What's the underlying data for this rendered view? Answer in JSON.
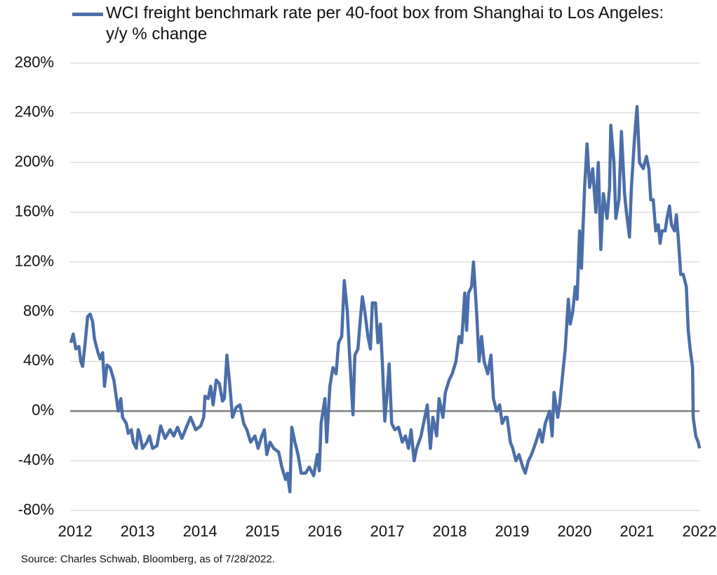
{
  "chart_data": {
    "type": "line",
    "note": "Source: Charles Schwab, Bloomberg, as of 7/28/2022.",
    "x": [
      2011.93,
      2011.97,
      2012.01,
      2012.06,
      2012.09,
      2012.12,
      2012.16,
      2012.2,
      2012.24,
      2012.28,
      2012.31,
      2012.36,
      2012.4,
      2012.44,
      2012.47,
      2012.51,
      2012.56,
      2012.62,
      2012.69,
      2012.73,
      2012.76,
      2012.82,
      2012.85,
      2012.9,
      2012.93,
      2012.98,
      2013.01,
      2013.04,
      2013.08,
      2013.15,
      2013.19,
      2013.24,
      2013.31,
      2013.37,
      2013.44,
      2013.52,
      2013.58,
      2013.64,
      2013.71,
      2013.79,
      2013.85,
      2013.93,
      2014.01,
      2014.06,
      2014.08,
      2014.13,
      2014.17,
      2014.21,
      2014.26,
      2014.31,
      2014.36,
      2014.39,
      2014.43,
      2014.47,
      2014.52,
      2014.58,
      2014.64,
      2014.7,
      2014.75,
      2014.81,
      2014.88,
      2014.93,
      2014.99,
      2015.03,
      2015.07,
      2015.12,
      2015.18,
      2015.26,
      2015.31,
      2015.37,
      2015.4,
      2015.44,
      2015.47,
      2015.52,
      2015.57,
      2015.62,
      2015.69,
      2015.75,
      2015.82,
      2015.88,
      2015.91,
      2015.94,
      2016.0,
      2016.03,
      2016.08,
      2016.13,
      2016.18,
      2016.22,
      2016.27,
      2016.31,
      2016.36,
      2016.39,
      2016.45,
      2016.48,
      2016.53,
      2016.57,
      2016.6,
      2016.64,
      2016.69,
      2016.73,
      2016.76,
      2016.81,
      2016.85,
      2016.89,
      2016.92,
      2016.96,
      2016.99,
      2017.03,
      2017.07,
      2017.12,
      2017.18,
      2017.24,
      2017.29,
      2017.34,
      2017.38,
      2017.43,
      2017.47,
      2017.54,
      2017.6,
      2017.64,
      2017.69,
      2017.73,
      2017.79,
      2017.83,
      2017.89,
      2017.93,
      2017.99,
      2018.04,
      2018.1,
      2018.15,
      2018.19,
      2018.24,
      2018.27,
      2018.3,
      2018.35,
      2018.38,
      2018.43,
      2018.47,
      2018.51,
      2018.55,
      2018.61,
      2018.66,
      2018.7,
      2018.75,
      2018.8,
      2018.84,
      2018.89,
      2018.92,
      2018.97,
      2019.01,
      2019.06,
      2019.11,
      2019.17,
      2019.21,
      2019.26,
      2019.31,
      2019.38,
      2019.44,
      2019.48,
      2019.53,
      2019.6,
      2019.64,
      2019.67,
      2019.73,
      2019.76,
      2019.81,
      2019.85,
      2019.9,
      2019.93,
      2019.97,
      2020.01,
      2020.04,
      2020.08,
      2020.11,
      2020.16,
      2020.2,
      2020.24,
      2020.29,
      2020.34,
      2020.38,
      2020.42,
      2020.46,
      2020.52,
      2020.56,
      2020.58,
      2020.63,
      2020.66,
      2020.71,
      2020.75,
      2020.8,
      2020.83,
      2020.88,
      2020.91,
      2020.96,
      2021.0,
      2021.04,
      2021.1,
      2021.15,
      2021.19,
      2021.22,
      2021.26,
      2021.3,
      2021.34,
      2021.37,
      2021.4,
      2021.45,
      2021.48,
      2021.52,
      2021.55,
      2021.6,
      2021.63,
      2021.66,
      2021.7,
      2021.74,
      2021.79,
      2021.82,
      2021.85,
      2021.89,
      2021.9,
      2021.94,
      2021.98,
      2022.0
    ],
    "series": [
      {
        "name": "WCI freight benchmark rate per 40-foot box from Shanghai to Los Angeles: y/y % change",
        "color": "#4a6ea9",
        "values": [
          55,
          62,
          50,
          52,
          40,
          36,
          55,
          76,
          78,
          72,
          58,
          48,
          42,
          47,
          20,
          37,
          35,
          25,
          0,
          10,
          -5,
          -10,
          -18,
          -15,
          -25,
          -30,
          -15,
          -20,
          -30,
          -25,
          -20,
          -30,
          -28,
          -12,
          -22,
          -15,
          -20,
          -13,
          -22,
          -12,
          -5,
          -15,
          -12,
          -5,
          12,
          10,
          20,
          5,
          25,
          22,
          8,
          10,
          45,
          25,
          -5,
          3,
          5,
          -10,
          -15,
          -25,
          -20,
          -30,
          -20,
          -15,
          -35,
          -25,
          -30,
          -33,
          -45,
          -55,
          -50,
          -65,
          -13,
          -25,
          -35,
          -50,
          -50,
          -45,
          -52,
          -35,
          -48,
          -10,
          10,
          -25,
          20,
          35,
          30,
          55,
          60,
          105,
          80,
          50,
          -3,
          45,
          50,
          75,
          92,
          80,
          60,
          50,
          87,
          87,
          55,
          70,
          40,
          -8,
          10,
          38,
          -10,
          -15,
          -13,
          -25,
          -20,
          -30,
          -15,
          -40,
          -30,
          -20,
          -5,
          5,
          -30,
          -5,
          -20,
          10,
          -5,
          15,
          25,
          30,
          40,
          60,
          55,
          95,
          65,
          95,
          100,
          120,
          80,
          40,
          60,
          40,
          30,
          45,
          10,
          0,
          5,
          -10,
          -5,
          -5,
          -25,
          -30,
          -40,
          -35,
          -45,
          -50,
          -40,
          -35,
          -25,
          -15,
          -25,
          -10,
          0,
          -20,
          15,
          -5,
          5,
          30,
          50,
          90,
          70,
          80,
          100,
          90,
          145,
          115,
          180,
          215,
          180,
          195,
          160,
          200,
          130,
          175,
          155,
          180,
          230,
          200,
          155,
          170,
          225,
          175,
          160,
          140,
          180,
          220,
          245,
          200,
          195,
          205,
          195,
          170,
          170,
          145,
          150,
          135,
          145,
          145,
          155,
          165,
          150,
          145,
          158,
          140,
          110,
          110,
          100,
          65,
          50,
          35,
          -5,
          -20,
          -25,
          -30
        ]
      }
    ],
    "xlim": [
      2011.92,
      2022.0
    ],
    "xticks": [
      2012,
      2013,
      2014,
      2015,
      2016,
      2017,
      2018,
      2019,
      2020,
      2021,
      2022
    ],
    "ylim": [
      -80,
      280
    ],
    "yticks": [
      {
        "value": -80,
        "label": "-80%"
      },
      {
        "value": -40,
        "label": "-40%"
      },
      {
        "value": 0,
        "label": "0%"
      },
      {
        "value": 40,
        "label": "40%"
      },
      {
        "value": 80,
        "label": "80%"
      },
      {
        "value": 120,
        "label": "120%"
      },
      {
        "value": 160,
        "label": "160%"
      },
      {
        "value": 200,
        "label": "200%"
      },
      {
        "value": 240,
        "label": "240%"
      },
      {
        "value": 280,
        "label": "280%"
      }
    ],
    "grid": true
  }
}
